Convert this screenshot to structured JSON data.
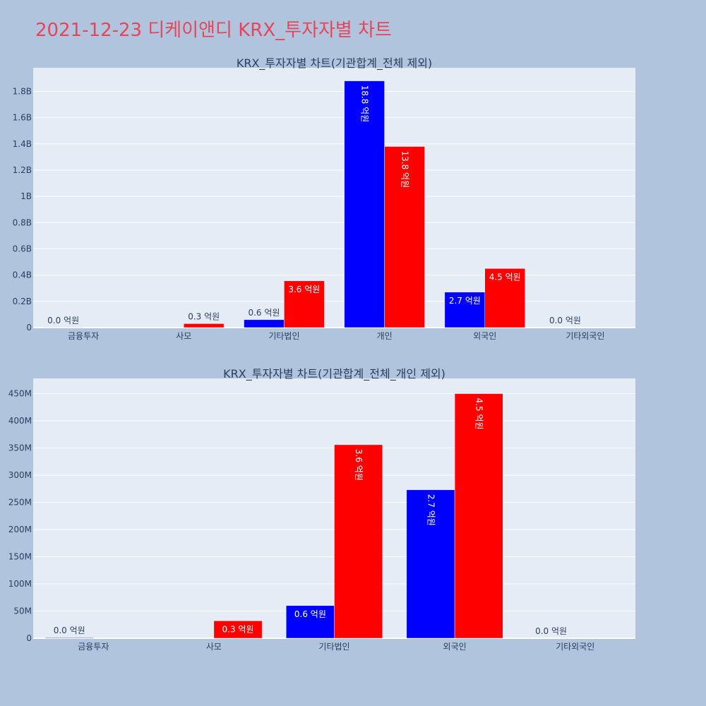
{
  "title": "2021-12-23 디케이앤디 KRX_투자자별 차트",
  "colors": {
    "background": "#b0c4de",
    "plot_bg": "#e5ecf6",
    "grid": "#ffffff",
    "title": "#e8455a",
    "text": "#2a3f5f",
    "series1": "#0000ff",
    "series2": "#ff0000"
  },
  "chart_data": [
    {
      "type": "bar",
      "title": "KRX_투자자별 차트(기관합계_전체 제외)",
      "categories": [
        "금융투자",
        "사모",
        "기타법인",
        "개인",
        "외국인",
        "기타외국인"
      ],
      "ylim": [
        0,
        1980000000
      ],
      "yticks": [
        0,
        200000000,
        400000000,
        600000000,
        800000000,
        1000000000,
        1200000000,
        1400000000,
        1600000000,
        1800000000
      ],
      "ytick_labels": [
        "0",
        "0.2B",
        "0.4B",
        "0.6B",
        "0.8B",
        "1B",
        "1.2B",
        "1.4B",
        "1.6B",
        "1.8B"
      ],
      "series": [
        {
          "values": [
            1000000,
            0,
            60000000,
            1880000000,
            270000000,
            0
          ],
          "labels": [
            "0.0 억원",
            "",
            "0.6 억원",
            "18.8 억원",
            "2.7 억원",
            "0.0 억원"
          ]
        },
        {
          "values": [
            0,
            30000000,
            356000000,
            1380000000,
            450000000,
            0
          ],
          "labels": [
            "",
            "0.3 억원",
            "3.6 억원",
            "13.8 억원",
            "4.5 억원",
            ""
          ]
        }
      ]
    },
    {
      "type": "bar",
      "title": "KRX_투자자별 차트(기관합계_전체_개인 제외)",
      "categories": [
        "금융투자",
        "사모",
        "기타법인",
        "외국인",
        "기타외국인"
      ],
      "ylim": [
        0,
        478000000
      ],
      "yticks": [
        0,
        50000000,
        100000000,
        150000000,
        200000000,
        250000000,
        300000000,
        350000000,
        400000000,
        450000000
      ],
      "ytick_labels": [
        "0",
        "50M",
        "100M",
        "150M",
        "200M",
        "250M",
        "300M",
        "350M",
        "400M",
        "450M"
      ],
      "series": [
        {
          "values": [
            1000000,
            0,
            60000000,
            273000000,
            0
          ],
          "labels": [
            "0.0 억원",
            "",
            "0.6 억원",
            "2.7 억원",
            "0.0 억원"
          ]
        },
        {
          "values": [
            0,
            32000000,
            356000000,
            450000000,
            0
          ],
          "labels": [
            "",
            "0.3 억원",
            "3.6 억원",
            "4.5 억원",
            ""
          ]
        }
      ]
    }
  ]
}
